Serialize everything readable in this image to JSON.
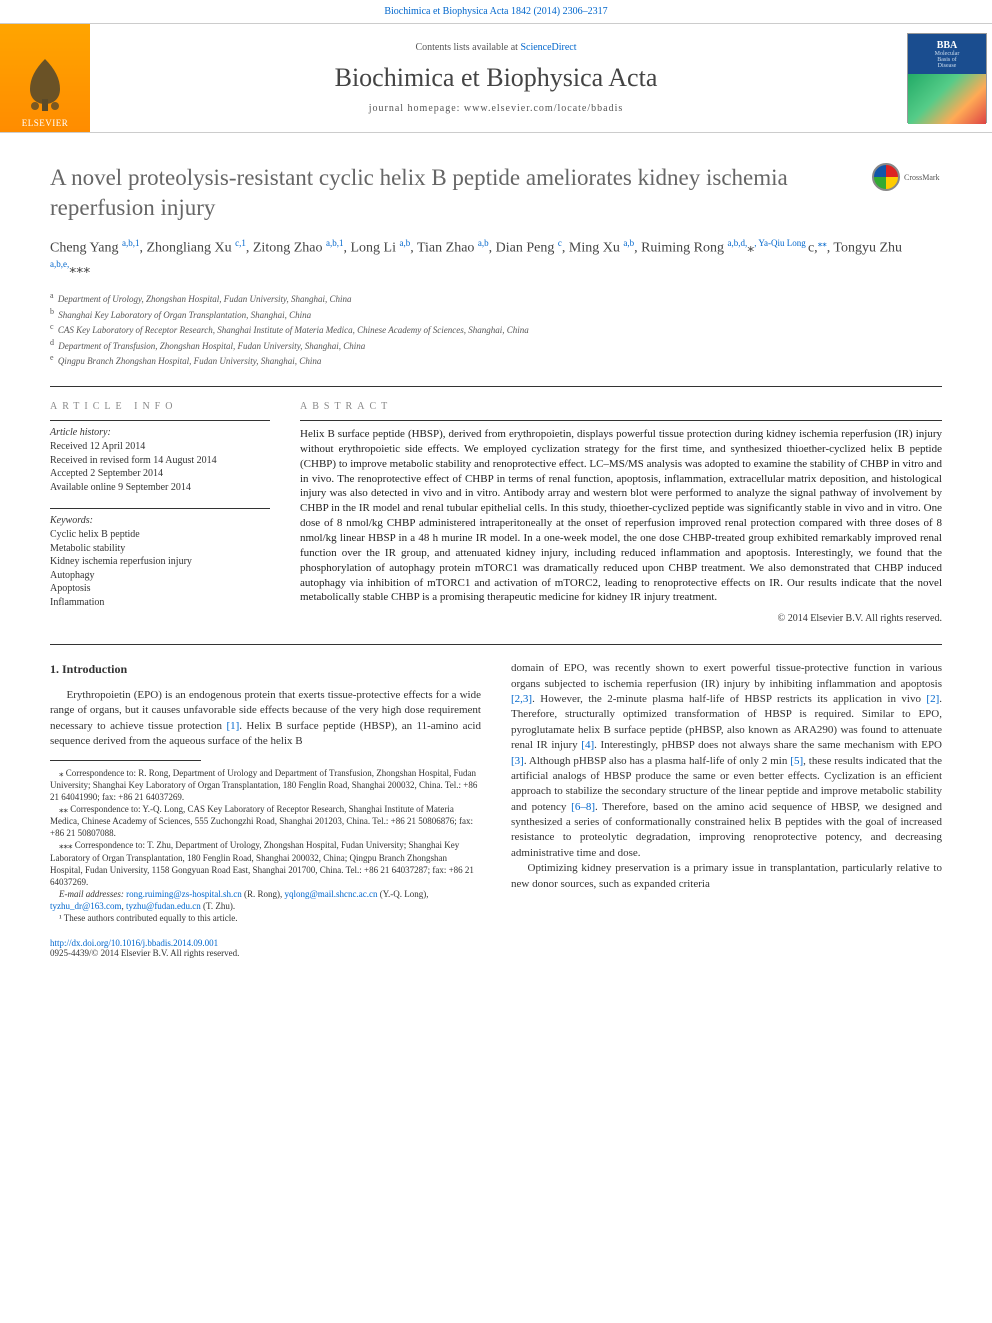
{
  "top_link": "Biochimica et Biophysica Acta 1842 (2014) 2306–2317",
  "header": {
    "contents_prefix": "Contents lists available at ",
    "contents_link": "ScienceDirect",
    "journal": "Biochimica et Biophysica Acta",
    "homepage": "journal homepage: www.elsevier.com/locate/bbadis",
    "publisher": "ELSEVIER",
    "cover": {
      "acronym": "BBA",
      "subtitle1": "Molecular",
      "subtitle2": "Basis of",
      "subtitle3": "Disease"
    }
  },
  "crossmark": "CrossMark",
  "title": "A novel proteolysis-resistant cyclic helix B peptide ameliorates kidney ischemia reperfusion injury",
  "authors_html_parts": [
    "Cheng Yang ",
    "a,b,1",
    ", Zhongliang Xu ",
    "c,1",
    ", Zitong Zhao ",
    "a,b,1",
    ", Long Li ",
    "a,b",
    ", Tian Zhao ",
    "a,b",
    ", Dian Peng ",
    "c",
    ", Ming Xu ",
    "a,b",
    ", Ruiming Rong ",
    "a,b,d,",
    "⁎",
    ", Ya-Qiu Long ",
    "c,",
    "⁎⁎",
    ", Tongyu Zhu ",
    "a,b,e,",
    "⁎⁎⁎"
  ],
  "affiliations": [
    {
      "sup": "a",
      "text": "Department of Urology, Zhongshan Hospital, Fudan University, Shanghai, China"
    },
    {
      "sup": "b",
      "text": "Shanghai Key Laboratory of Organ Transplantation, Shanghai, China"
    },
    {
      "sup": "c",
      "text": "CAS Key Laboratory of Receptor Research, Shanghai Institute of Materia Medica, Chinese Academy of Sciences, Shanghai, China"
    },
    {
      "sup": "d",
      "text": "Department of Transfusion, Zhongshan Hospital, Fudan University, Shanghai, China"
    },
    {
      "sup": "e",
      "text": "Qingpu Branch Zhongshan Hospital, Fudan University, Shanghai, China"
    }
  ],
  "article_info_label": "article info",
  "abstract_label": "abstract",
  "history": {
    "header": "Article history:",
    "lines": [
      "Received 12 April 2014",
      "Received in revised form 14 August 2014",
      "Accepted 2 September 2014",
      "Available online 9 September 2014"
    ]
  },
  "keywords": {
    "header": "Keywords:",
    "items": [
      "Cyclic helix B peptide",
      "Metabolic stability",
      "Kidney ischemia reperfusion injury",
      "Autophagy",
      "Apoptosis",
      "Inflammation"
    ]
  },
  "abstract": "Helix B surface peptide (HBSP), derived from erythropoietin, displays powerful tissue protection during kidney ischemia reperfusion (IR) injury without erythropoietic side effects. We employed cyclization strategy for the first time, and synthesized thioether-cyclized helix B peptide (CHBP) to improve metabolic stability and renoprotective effect. LC–MS/MS analysis was adopted to examine the stability of CHBP in vitro and in vivo. The renoprotective effect of CHBP in terms of renal function, apoptosis, inflammation, extracellular matrix deposition, and histological injury was also detected in vivo and in vitro. Antibody array and western blot were performed to analyze the signal pathway of involvement by CHBP in the IR model and renal tubular epithelial cells. In this study, thioether-cyclized peptide was significantly stable in vivo and in vitro. One dose of 8 nmol/kg CHBP administered intraperitoneally at the onset of reperfusion improved renal protection compared with three doses of 8 nmol/kg linear HBSP in a 48 h murine IR model. In a one-week model, the one dose CHBP-treated group exhibited remarkably improved renal function over the IR group, and attenuated kidney injury, including reduced inflammation and apoptosis. Interestingly, we found that the phosphorylation of autophagy protein mTORC1 was dramatically reduced upon CHBP treatment. We also demonstrated that CHBP induced autophagy via inhibition of mTORC1 and activation of mTORC2, leading to renoprotective effects on IR. Our results indicate that the novel metabolically stable CHBP is a promising therapeutic medicine for kidney IR injury treatment.",
  "copyright": "© 2014 Elsevier B.V. All rights reserved.",
  "intro": {
    "heading": "1. Introduction",
    "p1_pre": "Erythropoietin (EPO) is an endogenous protein that exerts tissue-protective effects for a wide range of organs, but it causes unfavorable side effects because of the very high dose requirement necessary to achieve tissue protection ",
    "p1_ref1": "[1]",
    "p1_post": ". Helix B surface peptide (HBSP), an 11-amino acid sequence derived from the aqueous surface of the helix B",
    "p2_a": "domain of EPO, was recently shown to exert powerful tissue-protective function in various organs subjected to ischemia reperfusion (IR) injury by inhibiting inflammation and apoptosis ",
    "p2_ref23": "[2,3]",
    "p2_b": ". However, the 2-minute plasma half-life of HBSP restricts its application in vivo ",
    "p2_ref2": "[2]",
    "p2_c": ". Therefore, structurally optimized transformation of HBSP is required. Similar to EPO, pyroglutamate helix B surface peptide (pHBSP, also known as ARA290) was found to attenuate renal IR injury ",
    "p2_ref4": "[4]",
    "p2_d": ". Interestingly, pHBSP does not always share the same mechanism with EPO ",
    "p2_ref3": "[3]",
    "p2_e": ". Although pHBSP also has a plasma half-life of only 2 min ",
    "p2_ref5": "[5]",
    "p2_f": ", these results indicated that the artificial analogs of HBSP produce the same or even better effects. Cyclization is an efficient approach to stabilize the secondary structure of the linear peptide and improve metabolic stability and potency ",
    "p2_ref68": "[6–8]",
    "p2_g": ". Therefore, based on the amino acid sequence of HBSP, we designed and synthesized a series of conformationally constrained helix B peptides with the goal of increased resistance to proteolytic degradation, improving renoprotective potency, and decreasing administrative time and dose.",
    "p3": "Optimizing kidney preservation is a primary issue in transplantation, particularly relative to new donor sources, such as expanded criteria"
  },
  "footnotes": {
    "f1": "⁎ Correspondence to: R. Rong, Department of Urology and Department of Transfusion, Zhongshan Hospital, Fudan University; Shanghai Key Laboratory of Organ Transplantation, 180 Fenglin Road, Shanghai 200032, China. Tel.: +86 21 64041990; fax: +86 21 64037269.",
    "f2": "⁎⁎ Correspondence to: Y.-Q. Long, CAS Key Laboratory of Receptor Research, Shanghai Institute of Materia Medica, Chinese Academy of Sciences, 555 Zuchongzhi Road, Shanghai 201203, China. Tel.: +86 21 50806876; fax: +86 21 50807088.",
    "f3": "⁎⁎⁎ Correspondence to: T. Zhu, Department of Urology, Zhongshan Hospital, Fudan University; Shanghai Key Laboratory of Organ Transplantation, 180 Fenglin Road, Shanghai 200032, China; Qingpu Branch Zhongshan Hospital, Fudan University, 1158 Gongyuan Road East, Shanghai 201700, China. Tel.: +86 21 64037287; fax: +86 21 64037269.",
    "emails_label": "E-mail addresses: ",
    "email1": "rong.ruiming@zs-hospital.sh.cn",
    "email1_who": " (R. Rong), ",
    "email2": "yqlong@mail.shcnc.ac.cn",
    "email2_who": " (Y.-Q. Long), ",
    "email3": "tyzhu_dr@163.com",
    "email3_sep": ", ",
    "email4": "tyzhu@fudan.edu.cn",
    "email4_who": " (T. Zhu).",
    "shared": "¹ These authors contributed equally to this article."
  },
  "footer": {
    "doi": "http://dx.doi.org/10.1016/j.bbadis.2014.09.001",
    "issn_line": "0925-4439/© 2014 Elsevier B.V. All rights reserved."
  },
  "colors": {
    "link": "#0066cc",
    "elsevier_orange": "#ff8c00",
    "bba_blue": "#1a4d8f",
    "title_gray": "#666666",
    "text": "#333333"
  }
}
